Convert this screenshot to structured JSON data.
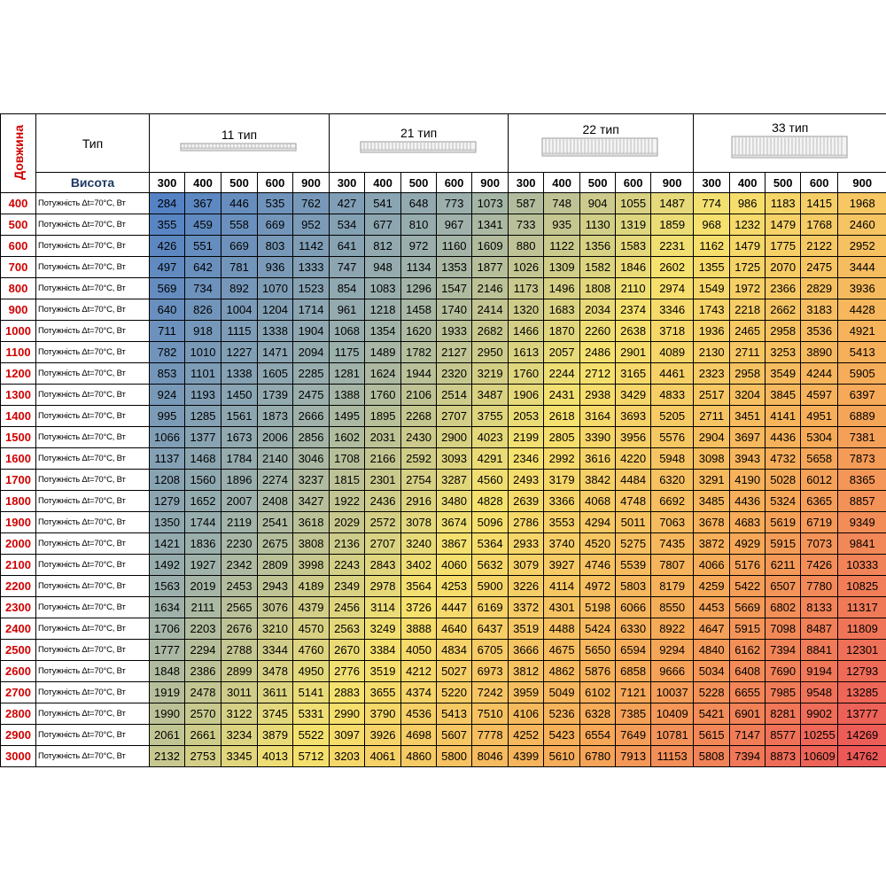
{
  "header": {
    "length_label": "Довжина",
    "type_label": "Тип",
    "height_label": "Висота",
    "groups": [
      {
        "title": "11 тип",
        "heights": [
          300,
          400,
          500,
          600,
          900
        ]
      },
      {
        "title": "21 тип",
        "heights": [
          300,
          400,
          500,
          600,
          900
        ]
      },
      {
        "title": "22 тип",
        "heights": [
          300,
          400,
          500,
          600,
          900
        ]
      },
      {
        "title": "33 тип",
        "heights": [
          300,
          400,
          500,
          600,
          900
        ]
      }
    ]
  },
  "rows": [
    {
      "length": 400,
      "label": "Потужність Δt=70°C, Вт",
      "values": [
        284,
        367,
        446,
        535,
        762,
        427,
        541,
        648,
        773,
        1073,
        587,
        748,
        904,
        1055,
        1487,
        774,
        986,
        1183,
        1415,
        1968
      ]
    },
    {
      "length": 500,
      "label": "Потужність Δt=70°C, Вт",
      "values": [
        355,
        459,
        558,
        669,
        952,
        534,
        677,
        810,
        967,
        1341,
        733,
        935,
        1130,
        1319,
        1859,
        968,
        1232,
        1479,
        1768,
        2460
      ]
    },
    {
      "length": 600,
      "label": "Потужність Δt=70°C, Вт",
      "values": [
        426,
        551,
        669,
        803,
        1142,
        641,
        812,
        972,
        1160,
        1609,
        880,
        1122,
        1356,
        1583,
        2231,
        1162,
        1479,
        1775,
        2122,
        2952
      ]
    },
    {
      "length": 700,
      "label": "Потужність Δt=70°C, Вт",
      "values": [
        497,
        642,
        781,
        936,
        1333,
        747,
        948,
        1134,
        1353,
        1877,
        1026,
        1309,
        1582,
        1846,
        2602,
        1355,
        1725,
        2070,
        2475,
        3444
      ]
    },
    {
      "length": 800,
      "label": "Потужність Δt=70°C, Вт",
      "values": [
        569,
        734,
        892,
        1070,
        1523,
        854,
        1083,
        1296,
        1547,
        2146,
        1173,
        1496,
        1808,
        2110,
        2974,
        1549,
        1972,
        2366,
        2829,
        3936
      ]
    },
    {
      "length": 900,
      "label": "Потужність Δt=70°C, Вт",
      "values": [
        640,
        826,
        1004,
        1204,
        1714,
        961,
        1218,
        1458,
        1740,
        2414,
        1320,
        1683,
        2034,
        2374,
        3346,
        1743,
        2218,
        2662,
        3183,
        4428
      ]
    },
    {
      "length": 1000,
      "label": "Потужність Δt=70°C, Вт",
      "values": [
        711,
        918,
        1115,
        1338,
        1904,
        1068,
        1354,
        1620,
        1933,
        2682,
        1466,
        1870,
        2260,
        2638,
        3718,
        1936,
        2465,
        2958,
        3536,
        4921
      ]
    },
    {
      "length": 1100,
      "label": "Потужність Δt=70°C, Вт",
      "values": [
        782,
        1010,
        1227,
        1471,
        2094,
        1175,
        1489,
        1782,
        2127,
        2950,
        1613,
        2057,
        2486,
        2901,
        4089,
        2130,
        2711,
        3253,
        3890,
        5413
      ]
    },
    {
      "length": 1200,
      "label": "Потужність Δt=70°C, Вт",
      "values": [
        853,
        1101,
        1338,
        1605,
        2285,
        1281,
        1624,
        1944,
        2320,
        3219,
        1760,
        2244,
        2712,
        3165,
        4461,
        2323,
        2958,
        3549,
        4244,
        5905
      ]
    },
    {
      "length": 1300,
      "label": "Потужність Δt=70°C, Вт",
      "values": [
        924,
        1193,
        1450,
        1739,
        2475,
        1388,
        1760,
        2106,
        2514,
        3487,
        1906,
        2431,
        2938,
        3429,
        4833,
        2517,
        3204,
        3845,
        4597,
        6397
      ]
    },
    {
      "length": 1400,
      "label": "Потужність Δt=70°C, Вт",
      "values": [
        995,
        1285,
        1561,
        1873,
        2666,
        1495,
        1895,
        2268,
        2707,
        3755,
        2053,
        2618,
        3164,
        3693,
        5205,
        2711,
        3451,
        4141,
        4951,
        6889
      ]
    },
    {
      "length": 1500,
      "label": "Потужність Δt=70°C, Вт",
      "values": [
        1066,
        1377,
        1673,
        2006,
        2856,
        1602,
        2031,
        2430,
        2900,
        4023,
        2199,
        2805,
        3390,
        3956,
        5576,
        2904,
        3697,
        4436,
        5304,
        7381
      ]
    },
    {
      "length": 1600,
      "label": "Потужність Δt=70°C, Вт",
      "values": [
        1137,
        1468,
        1784,
        2140,
        3046,
        1708,
        2166,
        2592,
        3093,
        4291,
        2346,
        2992,
        3616,
        4220,
        5948,
        3098,
        3943,
        4732,
        5658,
        7873
      ]
    },
    {
      "length": 1700,
      "label": "Потужність Δt=70°C, Вт",
      "values": [
        1208,
        1560,
        1896,
        2274,
        3237,
        1815,
        2301,
        2754,
        3287,
        4560,
        2493,
        3179,
        3842,
        4484,
        6320,
        3291,
        4190,
        5028,
        6012,
        8365
      ]
    },
    {
      "length": 1800,
      "label": "Потужність Δt=70°C, Вт",
      "values": [
        1279,
        1652,
        2007,
        2408,
        3427,
        1922,
        2436,
        2916,
        3480,
        4828,
        2639,
        3366,
        4068,
        4748,
        6692,
        3485,
        4436,
        5324,
        6365,
        8857
      ]
    },
    {
      "length": 1900,
      "label": "Потужність Δt=70°C, Вт",
      "values": [
        1350,
        1744,
        2119,
        2541,
        3618,
        2029,
        2572,
        3078,
        3674,
        5096,
        2786,
        3553,
        4294,
        5011,
        7063,
        3678,
        4683,
        5619,
        6719,
        9349
      ]
    },
    {
      "length": 2000,
      "label": "Потужність Δt=70°C, Вт",
      "values": [
        1421,
        1836,
        2230,
        2675,
        3808,
        2136,
        2707,
        3240,
        3867,
        5364,
        2933,
        3740,
        4520,
        5275,
        7435,
        3872,
        4929,
        5915,
        7073,
        9841
      ]
    },
    {
      "length": 2100,
      "label": "Потужність Δt=70°C, Вт",
      "values": [
        1492,
        1927,
        2342,
        2809,
        3998,
        2243,
        2843,
        3402,
        4060,
        5632,
        3079,
        3927,
        4746,
        5539,
        7807,
        4066,
        5176,
        6211,
        7426,
        10333
      ]
    },
    {
      "length": 2200,
      "label": "Потужність Δt=70°C, Вт",
      "values": [
        1563,
        2019,
        2453,
        2943,
        4189,
        2349,
        2978,
        3564,
        4253,
        5900,
        3226,
        4114,
        4972,
        5803,
        8179,
        4259,
        5422,
        6507,
        7780,
        10825
      ]
    },
    {
      "length": 2300,
      "label": "Потужність Δt=70°C, Вт",
      "values": [
        1634,
        2111,
        2565,
        3076,
        4379,
        2456,
        3114,
        3726,
        4447,
        6169,
        3372,
        4301,
        5198,
        6066,
        8550,
        4453,
        5669,
        6802,
        8133,
        11317
      ]
    },
    {
      "length": 2400,
      "label": "Потужність Δt=70°C, Вт",
      "values": [
        1706,
        2203,
        2676,
        3210,
        4570,
        2563,
        3249,
        3888,
        4640,
        6437,
        3519,
        4488,
        5424,
        6330,
        8922,
        4647,
        5915,
        7098,
        8487,
        11809
      ]
    },
    {
      "length": 2500,
      "label": "Потужність Δt=70°C, Вт",
      "values": [
        1777,
        2294,
        2788,
        3344,
        4760,
        2670,
        3384,
        4050,
        4834,
        6705,
        3666,
        4675,
        5650,
        6594,
        9294,
        4840,
        6162,
        7394,
        8841,
        12301
      ]
    },
    {
      "length": 2600,
      "label": "Потужність Δt=70°C, Вт",
      "values": [
        1848,
        2386,
        2899,
        3478,
        4950,
        2776,
        3519,
        4212,
        5027,
        6973,
        3812,
        4862,
        5876,
        6858,
        9666,
        5034,
        6408,
        7690,
        9194,
        12793
      ]
    },
    {
      "length": 2700,
      "label": "Потужність Δt=70°C, Вт",
      "values": [
        1919,
        2478,
        3011,
        3611,
        5141,
        2883,
        3655,
        4374,
        5220,
        7242,
        3959,
        5049,
        6102,
        7121,
        10037,
        5228,
        6655,
        7985,
        9548,
        13285
      ]
    },
    {
      "length": 2800,
      "label": "Потужність Δt=70°C, Вт",
      "values": [
        1990,
        2570,
        3122,
        3745,
        5331,
        2990,
        3790,
        4536,
        5413,
        7510,
        4106,
        5236,
        6328,
        7385,
        10409,
        5421,
        6901,
        8281,
        9902,
        13777
      ]
    },
    {
      "length": 2900,
      "label": "Потужність Δt=70°C, Вт",
      "values": [
        2061,
        2661,
        3234,
        3879,
        5522,
        3097,
        3926,
        4698,
        5607,
        7778,
        4252,
        5423,
        6554,
        7649,
        10781,
        5615,
        7147,
        8577,
        10255,
        14269
      ]
    },
    {
      "length": 3000,
      "label": "Потужність Δt=70°C, Вт",
      "values": [
        2132,
        2753,
        3345,
        4013,
        5712,
        3203,
        4061,
        4860,
        5800,
        8046,
        4399,
        5610,
        6780,
        7913,
        11153,
        5808,
        7394,
        8873,
        10609,
        14762
      ]
    }
  ]
}
